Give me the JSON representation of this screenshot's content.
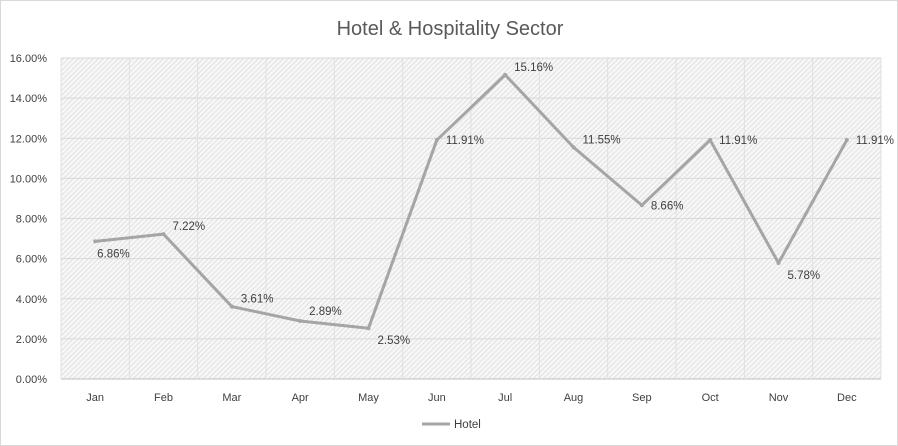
{
  "chart_data": {
    "type": "line",
    "title": "Hotel & Hospitality Sector",
    "categories": [
      "Jan",
      "Feb",
      "Mar",
      "Apr",
      "May",
      "Jun",
      "Jul",
      "Aug",
      "Sep",
      "Oct",
      "Nov",
      "Dec"
    ],
    "series": [
      {
        "name": "Hotel",
        "values": [
          6.86,
          7.22,
          3.61,
          2.89,
          2.53,
          11.91,
          15.16,
          11.55,
          8.66,
          11.91,
          5.78,
          11.91
        ],
        "labels": [
          "6.86%",
          "7.22%",
          "3.61%",
          "2.89%",
          "2.53%",
          "11.91%",
          "15.16%",
          "11.55%",
          "8.66%",
          "11.91%",
          "5.78%",
          "11.91%"
        ],
        "color": "#a5a5a5"
      }
    ],
    "y_ticks": [
      "0.00%",
      "2.00%",
      "4.00%",
      "6.00%",
      "8.00%",
      "10.00%",
      "12.00%",
      "14.00%",
      "16.00%"
    ],
    "ylim": [
      0,
      16
    ],
    "xlabel": "",
    "ylabel": "",
    "grid": true,
    "legend_position": "bottom",
    "plot_background": "hatched light gray"
  }
}
